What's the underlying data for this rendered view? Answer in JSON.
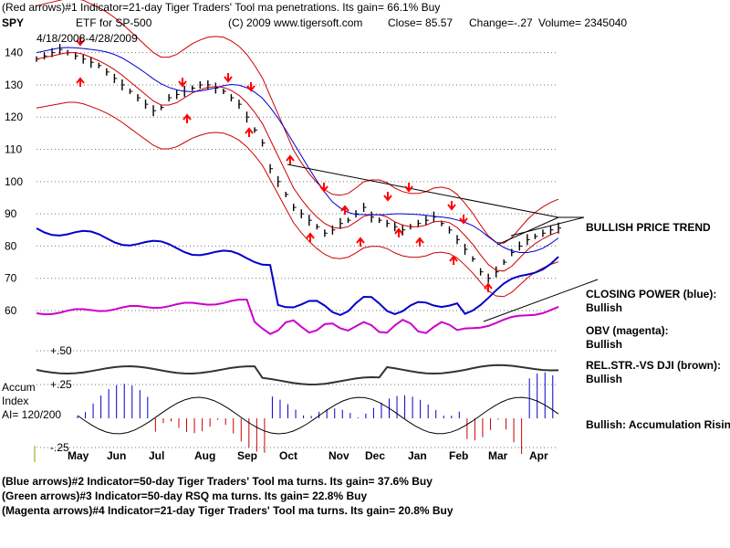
{
  "header": {
    "line1": "(Red arrows)#1 Indicator=21-day Tiger Traders' Tool ma penetrations. Its gain= 66.1% Buy",
    "ticker": "SPY",
    "description": "ETF for SP-500",
    "copyright": "(C) 2009 www.tigersoft.com",
    "close": "Close=  85.57",
    "change": "Change=-.27",
    "volume": "Volume= 2345040",
    "date_range": "4/18/2008-4/28/2009"
  },
  "annotations": {
    "bullish_price_trend": "BULLISH PRICE TREND",
    "closing_power_title": "CLOSING POWER (blue):",
    "closing_power_value": "Bullish",
    "obv_title": "OBV (magenta):",
    "obv_value": "Bullish",
    "relstr_title": "REL.STR.-VS DJI (brown):",
    "relstr_value": "Bullish",
    "accum_rising": "Bullish: Accumulation Rising",
    "accum_label_1": "Accum",
    "accum_label_2": "Index",
    "accum_label_3": "AI= 120/200"
  },
  "footer": {
    "line1": "(Blue arrows)#2 Indicator=50-day Tiger Traders' Tool ma turns. Its gain= 37.6% Buy",
    "line2": "(Green arrows)#3 Indicator=50-day RSQ ma turns. Its gain= 22.8% Buy",
    "line3": "(Magenta arrows)#4 Indicator=21-day Tiger Traders' Tool ma turns. Its gain= 20.8% Buy"
  },
  "chart_data": {
    "type": "line",
    "x_range": [
      "2008-04-18",
      "2009-04-28"
    ],
    "price_ylim": [
      60,
      145
    ],
    "price_ticks": [
      "140",
      "130",
      "120",
      "110",
      "100",
      "90",
      "80",
      "70",
      "60"
    ],
    "price_tick_values": [
      140,
      130,
      120,
      110,
      100,
      90,
      80,
      70,
      60
    ],
    "accum_ticks": [
      "+.50",
      "+.25",
      "-.25"
    ],
    "month_labels": [
      "May",
      "Jun",
      "Jul",
      "Aug",
      "Sep",
      "Oct",
      "Nov",
      "Dec",
      "Jan",
      "Feb",
      "Mar",
      "Apr"
    ],
    "grid": "dotted horizontal",
    "colors": {
      "price": "#000000",
      "bands": "#cc0000",
      "ma50": "#0000cc",
      "closing_power": "#0000cc",
      "obv": "#cc00cc",
      "relstr": "#333333",
      "accum_pos": "#0000cc",
      "accum_neg": "#cc0000",
      "arrows": "#ff0000"
    },
    "price_close": [
      138,
      139,
      140,
      141,
      140,
      139,
      138,
      137,
      136,
      134,
      132,
      130,
      128,
      126,
      124,
      122,
      123,
      126,
      127,
      128,
      129,
      130,
      130,
      129,
      128,
      126,
      124,
      120,
      116,
      112,
      104,
      100,
      96,
      92,
      90,
      88,
      86,
      84,
      85,
      87,
      88,
      90,
      92,
      89,
      88,
      87,
      86,
      85,
      86,
      87,
      88,
      89,
      87,
      85,
      82,
      79,
      76,
      72,
      70,
      72,
      75,
      78,
      80,
      82,
      83,
      84,
      85,
      85.6
    ]
  }
}
